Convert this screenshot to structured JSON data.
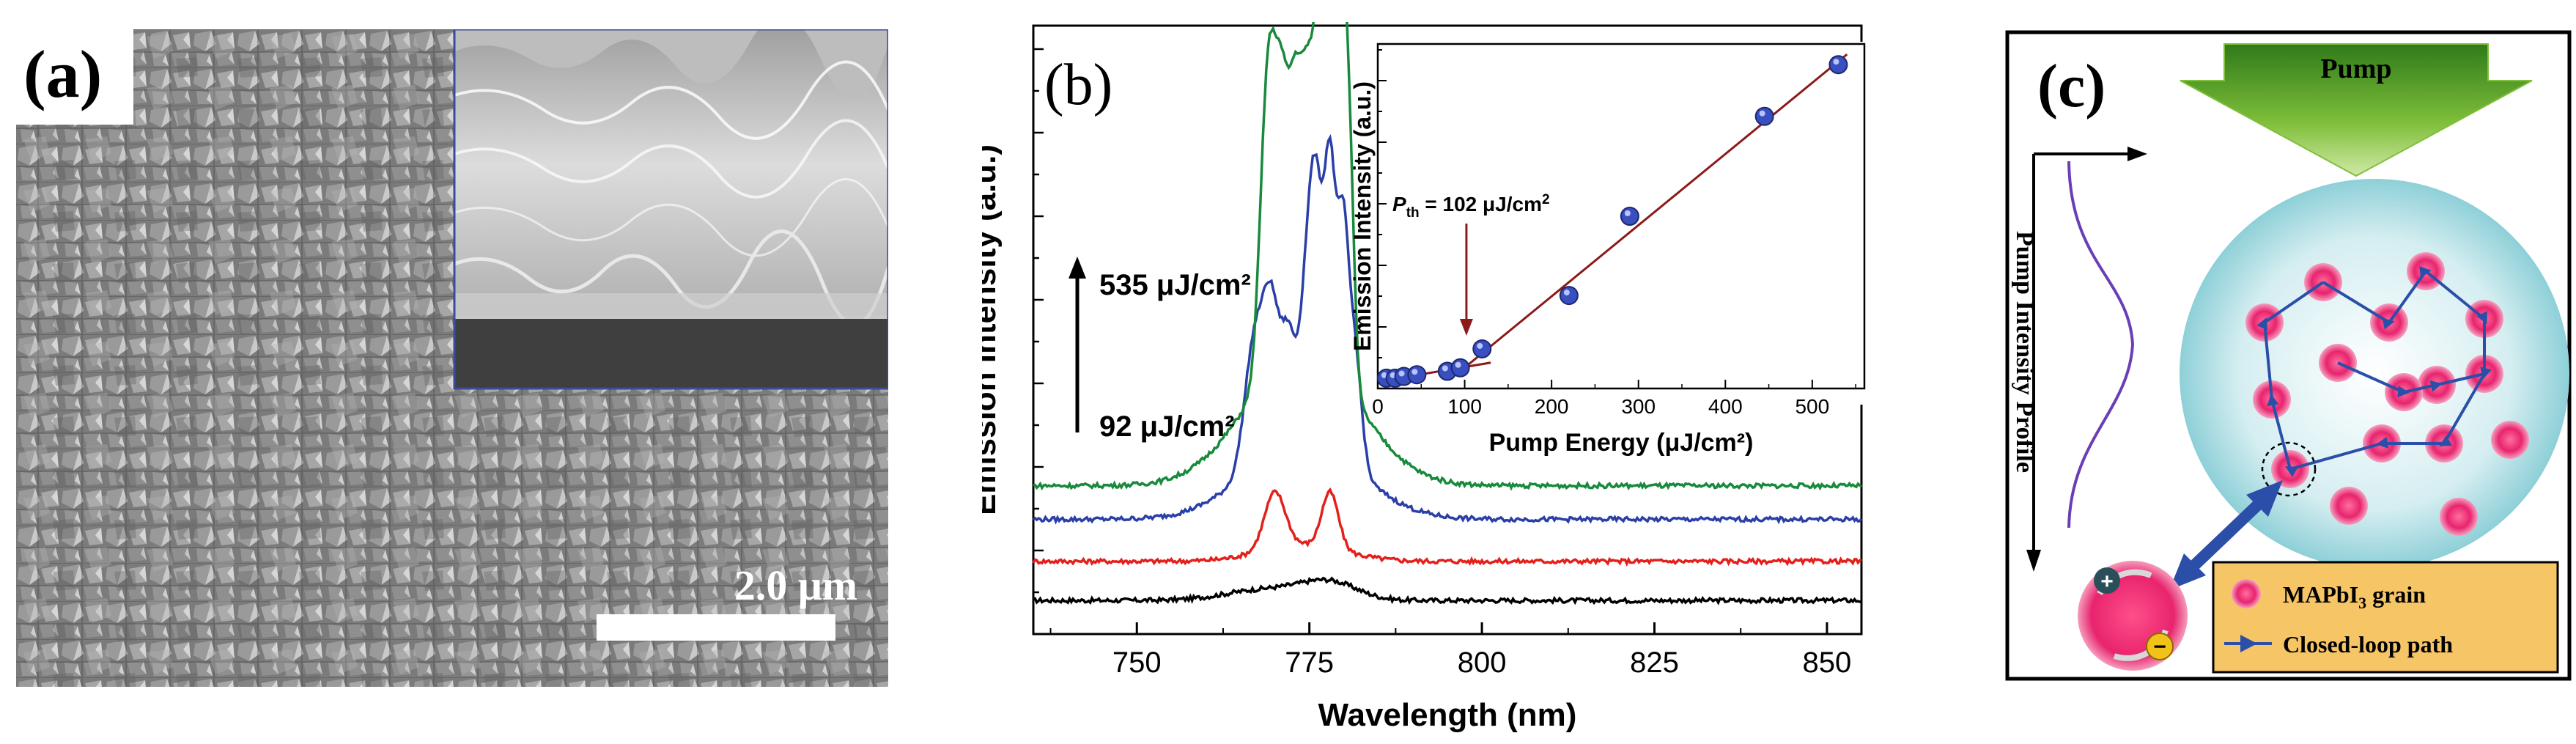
{
  "panel_a": {
    "label": "(a)",
    "scale_bar_label": "2.0 μm"
  },
  "panel_b": {
    "label": "(b)",
    "chart_data": [
      {
        "type": "line",
        "title": "",
        "xlabel": "Wavelength (nm)",
        "ylabel": "Emission Intensity (a.u.)",
        "xlim": [
          735,
          855
        ],
        "x_ticks": [
          750,
          775,
          800,
          825,
          850
        ],
        "annotations": [
          "535 μJ/cm²",
          "92 μJ/cm²"
        ],
        "series": [
          {
            "name": "black",
            "color": "#000000",
            "baseline": 0.06,
            "peaks": [
              [
                769,
                0.02,
                6
              ],
              [
                778,
                0.03,
                4
              ]
            ]
          },
          {
            "name": "red",
            "color": "#e3201b",
            "baseline": 0.13,
            "peaks": [
              [
                770,
                0.1,
                1.5
              ],
              [
                778,
                0.1,
                1.2
              ],
              [
                774,
                0.03,
                6
              ]
            ]
          },
          {
            "name": "blue",
            "color": "#2a3fa8",
            "baseline": 0.205,
            "peaks": [
              [
                767,
                0.22,
                1.4
              ],
              [
                769.5,
                0.25,
                1.2
              ],
              [
                772,
                0.18,
                1.0
              ],
              [
                774.5,
                0.22,
                1.0
              ],
              [
                776,
                0.42,
                1.0
              ],
              [
                778,
                0.47,
                0.8
              ],
              [
                779.8,
                0.38,
                0.8
              ],
              [
                781.5,
                0.22,
                1.0
              ],
              [
                774,
                0.14,
                8
              ]
            ]
          },
          {
            "name": "green",
            "color": "#188a3c",
            "baseline": 0.265,
            "peaks": [
              [
                769,
                0.53,
                1.1
              ],
              [
                771,
                0.4,
                1.0
              ],
              [
                773,
                0.42,
                1.0
              ],
              [
                775,
                0.45,
                1.0
              ],
              [
                776.8,
                0.62,
                0.8
              ],
              [
                778,
                1.0,
                0.6
              ],
              [
                779.2,
                0.82,
                0.6
              ],
              [
                780.5,
                0.56,
                0.8
              ],
              [
                774,
                0.24,
                8
              ]
            ]
          }
        ]
      },
      {
        "type": "scatter",
        "title": "",
        "xlabel": "Pump Energy (μJ/cm²)",
        "ylabel": "Emission Intensity (a.u.)",
        "xlim": [
          0,
          560
        ],
        "ylim": [
          0,
          1.0
        ],
        "x_ticks": [
          0,
          100,
          200,
          300,
          400,
          500
        ],
        "threshold_label": "P_th = 102 μJ/cm²",
        "threshold_prefix": "P",
        "threshold_sub": "th",
        "threshold_rest": " = 102 μJ/cm",
        "threshold_sup": "2",
        "threshold_x": 102,
        "points": [
          [
            10,
            0.03
          ],
          [
            20,
            0.03
          ],
          [
            30,
            0.035
          ],
          [
            45,
            0.04
          ],
          [
            80,
            0.05
          ],
          [
            95,
            0.06
          ],
          [
            120,
            0.115
          ],
          [
            220,
            0.27
          ],
          [
            290,
            0.5
          ],
          [
            445,
            0.79
          ],
          [
            530,
            0.94
          ]
        ],
        "fit_line_low": [
          [
            0,
            0.02
          ],
          [
            130,
            0.075
          ]
        ],
        "fit_line_high": [
          [
            90,
            0.04
          ],
          [
            540,
            0.97
          ]
        ]
      }
    ]
  },
  "panel_c": {
    "label": "(c)",
    "pump_label": "Pump",
    "profile_label": "Pump Intensity Profile",
    "legend": {
      "grain_label_prefix": "MAPbI",
      "grain_label_sub": "3",
      "grain_label_suffix": " grain",
      "path_label": "Closed-loop path"
    },
    "colors": {
      "grain": "#e8246e",
      "sphere": "#bfe6ea",
      "path": "#2b4fa8",
      "arrow_green": "#5a9a2a",
      "legend_bg": "#f6c566"
    }
  }
}
